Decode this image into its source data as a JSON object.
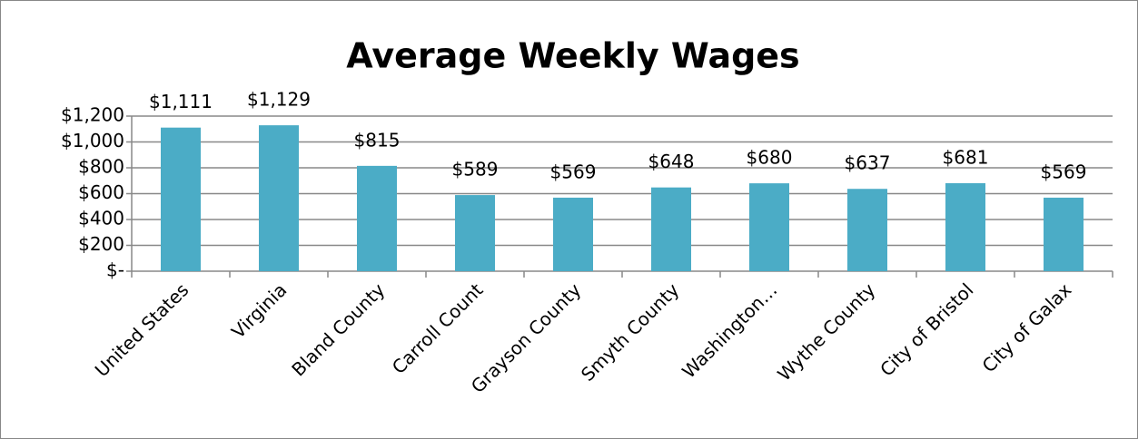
{
  "chart_data": {
    "type": "bar",
    "title": "Average Weekly Wages",
    "categories": [
      "United States",
      "Virginia",
      "Bland County",
      "Carroll Count",
      "Grayson County",
      "Smyth County",
      "Washington…",
      "Wythe County",
      "City of Bristol",
      "City of Galax"
    ],
    "values": [
      1111,
      1129,
      815,
      589,
      569,
      648,
      680,
      637,
      681,
      569
    ],
    "value_labels": [
      "$1,111",
      "$1,129",
      "$815",
      "$589",
      "$569",
      "$648",
      "$680",
      "$637",
      "$681",
      "$569"
    ],
    "color": "#4bacc6",
    "ylim": [
      0,
      1200
    ],
    "yticks": [
      {
        "value": 0,
        "label": "$-"
      },
      {
        "value": 200,
        "label": "$200"
      },
      {
        "value": 400,
        "label": "$400"
      },
      {
        "value": 600,
        "label": "$600"
      },
      {
        "value": 800,
        "label": "$800"
      },
      {
        "value": 1000,
        "label": "$1,000"
      },
      {
        "value": 1200,
        "label": "$1,200"
      }
    ],
    "grid": true
  }
}
